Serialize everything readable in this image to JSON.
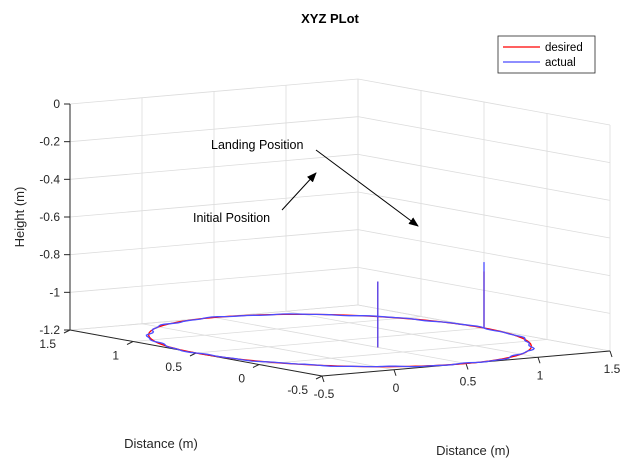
{
  "chart_data": {
    "type": "line",
    "title": "XYZ PLot",
    "xlabel": "Distance (m)",
    "ylabel": "Distance (m)",
    "zlabel": "Height (m)",
    "x_ticks": [
      "-0.5",
      "0",
      "0.5",
      "1",
      "1.5"
    ],
    "y_ticks": [
      "-0.5",
      "0",
      "0.5",
      "1",
      "1.5"
    ],
    "z_ticks": [
      "0",
      "-0.2",
      "-0.4",
      "-0.6",
      "-0.8",
      "-1",
      "-1.2"
    ],
    "xlim": [
      -0.5,
      1.5
    ],
    "ylim": [
      -0.5,
      1.5
    ],
    "zlim": [
      -1.2,
      0
    ],
    "grid": true,
    "legend_position": "top-right",
    "series": [
      {
        "name": "desired",
        "color": "#ff0000",
        "segments": [
          {
            "kind": "vertical",
            "x": 0.5,
            "y": 0.2,
            "z_range": [
              -0.85,
              -1.2
            ]
          },
          {
            "kind": "circle",
            "center": [
              0.5,
              0.5
            ],
            "radius": 1.0,
            "z": -1.2
          },
          {
            "kind": "vertical",
            "x": 1.5,
            "y": 0.5,
            "z_range": [
              -1.2,
              -0.9
            ]
          }
        ]
      },
      {
        "name": "actual",
        "color": "#4b4bff",
        "segments": [
          {
            "kind": "vertical",
            "x": 0.5,
            "y": 0.2,
            "z_range": [
              -0.85,
              -1.2
            ]
          },
          {
            "kind": "circle",
            "center": [
              0.5,
              0.5
            ],
            "radius": 1.0,
            "z": -1.2
          },
          {
            "kind": "vertical",
            "x": 1.5,
            "y": 0.5,
            "z_range": [
              -1.2,
              -0.85
            ]
          }
        ]
      }
    ],
    "annotations": [
      {
        "text": "Landing Position"
      },
      {
        "text": "Initial Position"
      }
    ]
  }
}
